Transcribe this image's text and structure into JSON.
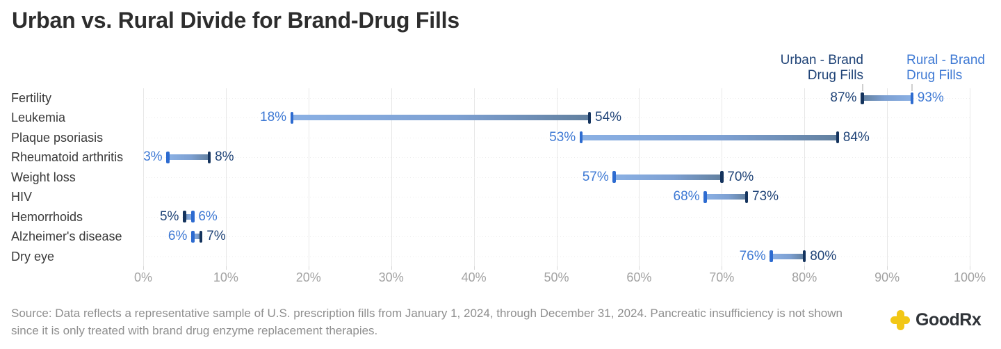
{
  "title": "Urban vs. Rural Divide for Brand-Drug Fills",
  "legend": {
    "urban": {
      "line1": "Urban - Brand",
      "line2": "Drug Fills"
    },
    "rural": {
      "line1": "Rural - Brand",
      "line2": "Drug Fills"
    }
  },
  "chart_data": {
    "type": "bar",
    "subtype": "dumbbell-range",
    "categories": [
      "Fertility",
      "Leukemia",
      "Plaque psoriasis",
      "Rheumatoid arthritis",
      "Weight loss",
      "HIV",
      "Hemorrhoids",
      "Alzheimer's disease",
      "Dry eye"
    ],
    "series": [
      {
        "name": "Urban - Brand Drug Fills",
        "values": [
          87,
          54,
          84,
          8,
          70,
          73,
          5,
          7,
          80
        ]
      },
      {
        "name": "Rural - Brand Drug Fills",
        "values": [
          93,
          18,
          53,
          3,
          57,
          68,
          6,
          6,
          76
        ]
      }
    ],
    "value_suffix": "%",
    "xlim": [
      0,
      100
    ],
    "x_tick_labels": [
      "0%",
      "10%",
      "20%",
      "30%",
      "40%",
      "50%",
      "60%",
      "70%",
      "80%",
      "90%",
      "100%"
    ],
    "grid": "vertical-solid, horizontal-dotted",
    "legend_position": "top-right",
    "colors": {
      "urban_text": "#1f4377",
      "rural_text": "#3e79d4",
      "urban_cap": "#14335d",
      "rural_cap": "#2d6bd0",
      "bar_rural_end": "#8ab0e4",
      "bar_mid": "#7da0d2",
      "bar_urban_end": "#62809f"
    }
  },
  "source": {
    "lines": [
      "Source: Data reflects a representative sample of U.S. prescription fills from January 1, 2024, through December 31, 2024. Pancreatic insufficiency is not shown",
      "since it is only treated with brand drug enzyme replacement therapies."
    ]
  },
  "logo": {
    "text": "GoodRx",
    "yellow": "#f2c716"
  }
}
